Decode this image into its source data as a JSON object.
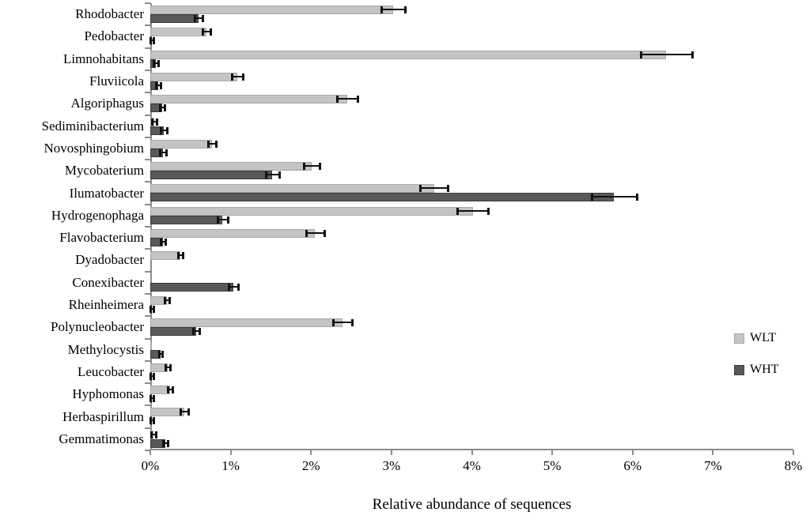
{
  "chart_data": {
    "type": "bar",
    "orientation": "horizontal",
    "title": "",
    "xlabel": "Relative abundance of sequences",
    "xlim": [
      0,
      8
    ],
    "x_ticks": [
      "0%",
      "1%",
      "2%",
      "3%",
      "4%",
      "5%",
      "6%",
      "7%",
      "8%"
    ],
    "grid": false,
    "legend_position": "right",
    "categories": [
      "Rhodobacter",
      "Pedobacter",
      "Limnohabitans",
      "Fluviicola",
      "Algoriphagus",
      "Sediminibacterium",
      "Novosphingobium",
      "Mycobaterium",
      "Ilumatobacter",
      "Hydrogenophaga",
      "Flavobacterium",
      "Dyadobacter",
      "Conexibacter",
      "Rheinheimera",
      "Polynucleobacter",
      "Methylocystis",
      "Leucobacter",
      "Hyphomonas",
      "Herbaspirillum",
      "Gemmatimonas"
    ],
    "series": [
      {
        "name": "WLT",
        "color": "#c4c4c4",
        "values": [
          3.02,
          0.7,
          6.42,
          1.08,
          2.45,
          0.05,
          0.77,
          2.01,
          3.53,
          4.01,
          2.05,
          0.37,
          0.0,
          0.21,
          2.39,
          0.02,
          0.22,
          0.25,
          0.42,
          0.04
        ],
        "errors": [
          0.15,
          0.05,
          0.32,
          0.07,
          0.13,
          0.03,
          0.05,
          0.1,
          0.17,
          0.19,
          0.11,
          0.03,
          0.0,
          0.03,
          0.12,
          0.0,
          0.03,
          0.03,
          0.05,
          0.03
        ]
      },
      {
        "name": "WHT",
        "color": "#595959",
        "values": [
          0.6,
          0.02,
          0.07,
          0.1,
          0.15,
          0.17,
          0.16,
          1.52,
          5.77,
          0.9,
          0.16,
          0.0,
          1.03,
          0.02,
          0.57,
          0.13,
          0.02,
          0.02,
          0.02,
          0.19
        ],
        "errors": [
          0.05,
          0.02,
          0.03,
          0.03,
          0.03,
          0.04,
          0.04,
          0.08,
          0.28,
          0.06,
          0.03,
          0.0,
          0.06,
          0.02,
          0.04,
          0.02,
          0.02,
          0.02,
          0.02,
          0.03
        ]
      }
    ]
  }
}
